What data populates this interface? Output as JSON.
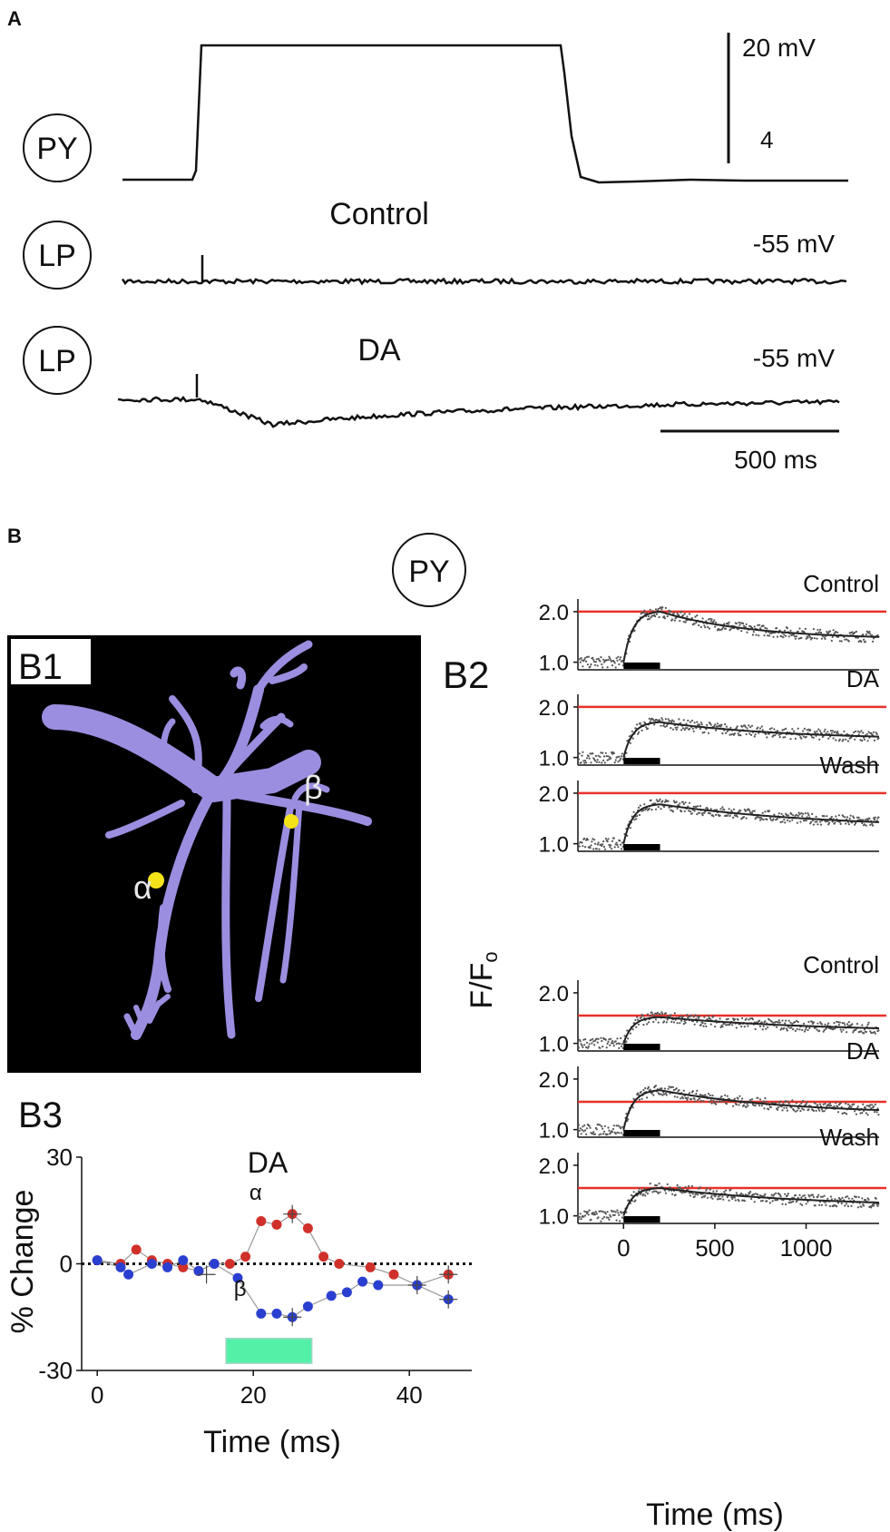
{
  "panel_a": {
    "letter": "A",
    "scale_v_label": "20 mV",
    "scale_v_sub": "4",
    "scale_t_label": "500 ms",
    "traces": [
      {
        "cell": "PY",
        "label": ""
      },
      {
        "cell": "LP",
        "label": "Control",
        "vm": "-55 mV"
      },
      {
        "cell": "LP",
        "label": "DA",
        "vm": "-55 mV"
      }
    ]
  },
  "panel_b": {
    "letter": "B",
    "cell": "PY",
    "b1": {
      "label": "B1",
      "alpha": "α",
      "beta": "β",
      "colors": {
        "dendrite": "#9b8ee0",
        "site": "#f5e31a",
        "background": "#000000"
      }
    },
    "b2": {
      "label": "B2",
      "ylabel_main": "F/F",
      "ylabel_sub": "o",
      "xlabel": "Time (ms)",
      "x_ticks": [
        "0",
        "500",
        "1000"
      ],
      "y_ticks": [
        "1.0",
        "2.0"
      ]
    },
    "b3": {
      "label": "B3",
      "title": "DA",
      "xlabel": "Time (ms)",
      "ylabel": "% Change",
      "x_ticks": [
        "0",
        "20",
        "40"
      ],
      "y_ticks": [
        "30",
        "0",
        "-30"
      ],
      "alpha_label": "α",
      "beta_label": "β"
    }
  },
  "chart_data": [
    {
      "id": "b2",
      "type": "scatter",
      "x_range": [
        -250,
        1400
      ],
      "y_range": [
        0.85,
        2.25
      ],
      "stim_window": [
        0,
        200
      ],
      "colors": {
        "reference_line": "#e8312a",
        "fit": "#222222",
        "points": "#555555"
      },
      "subplots": [
        {
          "label": "Control",
          "peak": 2.0,
          "decay_to": 1.45,
          "tau": 500,
          "reference": 2.0
        },
        {
          "label": "DA",
          "peak": 1.7,
          "decay_to": 1.35,
          "tau": 700,
          "reference": 2.0
        },
        {
          "label": "Wash",
          "peak": 1.78,
          "decay_to": 1.3,
          "tau": 900,
          "reference": 2.0
        },
        {
          "label": "Control",
          "peak": 1.52,
          "decay_to": 1.22,
          "tau": 900,
          "reference": 1.55
        },
        {
          "label": "DA",
          "peak": 1.78,
          "decay_to": 1.3,
          "tau": 700,
          "reference": 1.55
        },
        {
          "label": "Wash",
          "peak": 1.55,
          "decay_to": 1.18,
          "tau": 800,
          "reference": 1.55
        }
      ]
    },
    {
      "id": "b3",
      "type": "line",
      "xlim": [
        -2,
        48
      ],
      "ylim": [
        -30,
        30
      ],
      "stim_window": [
        16.5,
        27.5
      ],
      "colors": {
        "alpha": "#d0302a",
        "beta": "#2a3fd0",
        "stim": "#55f0a8"
      },
      "series": [
        {
          "name": "α",
          "x": [
            0,
            3,
            5,
            7,
            9,
            11,
            13,
            15,
            17,
            19,
            21,
            23,
            25,
            27,
            29,
            31,
            35,
            38,
            41,
            45
          ],
          "y": [
            1,
            0,
            4,
            1,
            0,
            -1,
            -2,
            0,
            0,
            2,
            12,
            11,
            14,
            10,
            2,
            0,
            -1,
            -3,
            -6,
            -3
          ]
        },
        {
          "name": "β",
          "x": [
            0,
            3,
            4,
            7,
            9,
            11,
            13,
            15,
            18,
            21,
            23,
            25,
            27,
            30,
            32,
            34,
            36,
            41,
            45
          ],
          "y": [
            1,
            -1,
            -3,
            0,
            -1,
            1,
            -2,
            0,
            -4,
            -14,
            -14,
            -15,
            -12,
            -9,
            -8,
            -5,
            -6,
            -6,
            -10
          ]
        }
      ]
    }
  ]
}
